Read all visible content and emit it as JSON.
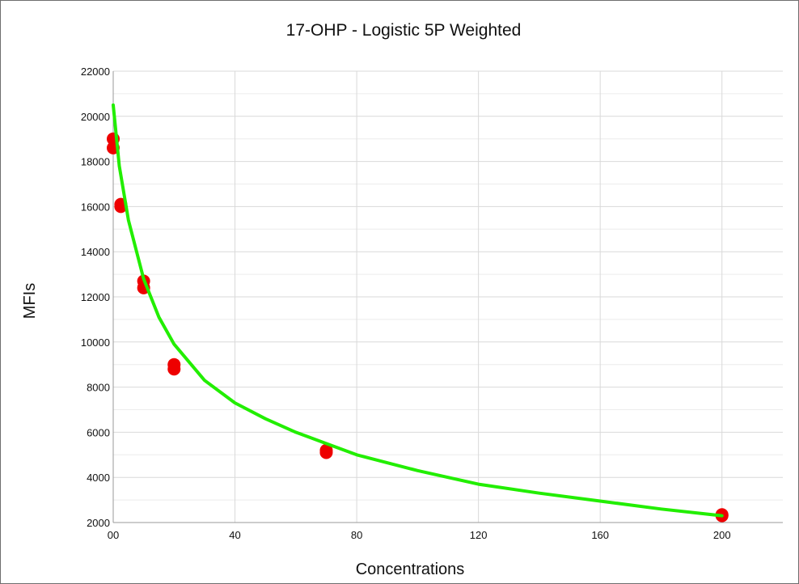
{
  "chart_data": {
    "type": "scatter",
    "title": "17-OHP - Logistic 5P Weighted",
    "xlabel": "Concentrations",
    "ylabel": "MFIs",
    "xlim": [
      0,
      220
    ],
    "ylim": [
      2000,
      22000
    ],
    "x_ticks": [
      0,
      40,
      80,
      120,
      160,
      200
    ],
    "x_tick_labels": [
      "00",
      "40",
      "80",
      "120",
      "160",
      "200"
    ],
    "y_ticks": [
      2000,
      4000,
      6000,
      8000,
      10000,
      12000,
      14000,
      16000,
      18000,
      20000,
      22000
    ],
    "y_tick_labels": [
      "2000",
      "4000",
      "6000",
      "8000",
      "10000",
      "12000",
      "14000",
      "16000",
      "18000",
      "20000",
      "22000"
    ],
    "grid": true,
    "series": [
      {
        "type": "scatter",
        "points": [
          {
            "x": 0,
            "y": 18600
          },
          {
            "x": 0,
            "y": 19000
          },
          {
            "x": 2.5,
            "y": 16100
          },
          {
            "x": 2.5,
            "y": 16000
          },
          {
            "x": 10,
            "y": 12700
          },
          {
            "x": 10,
            "y": 12400
          },
          {
            "x": 20,
            "y": 9000
          },
          {
            "x": 20,
            "y": 8800
          },
          {
            "x": 70,
            "y": 5200
          },
          {
            "x": 70,
            "y": 5100
          },
          {
            "x": 200,
            "y": 2350
          },
          {
            "x": 200,
            "y": 2300
          }
        ]
      },
      {
        "type": "line",
        "points": [
          {
            "x": 0,
            "y": 20500
          },
          {
            "x": 2,
            "y": 17800
          },
          {
            "x": 5,
            "y": 15400
          },
          {
            "x": 10,
            "y": 12800
          },
          {
            "x": 15,
            "y": 11100
          },
          {
            "x": 20,
            "y": 9900
          },
          {
            "x": 30,
            "y": 8300
          },
          {
            "x": 40,
            "y": 7300
          },
          {
            "x": 50,
            "y": 6600
          },
          {
            "x": 60,
            "y": 6000
          },
          {
            "x": 70,
            "y": 5500
          },
          {
            "x": 80,
            "y": 5000
          },
          {
            "x": 100,
            "y": 4300
          },
          {
            "x": 120,
            "y": 3700
          },
          {
            "x": 140,
            "y": 3300
          },
          {
            "x": 160,
            "y": 2950
          },
          {
            "x": 180,
            "y": 2600
          },
          {
            "x": 200,
            "y": 2300
          }
        ]
      }
    ]
  },
  "colors": {
    "points": "#ee0000",
    "curve": "#22ee00",
    "grid_major": "#d9d9d9",
    "grid_minor": "#ececec",
    "axis": "#999999"
  }
}
